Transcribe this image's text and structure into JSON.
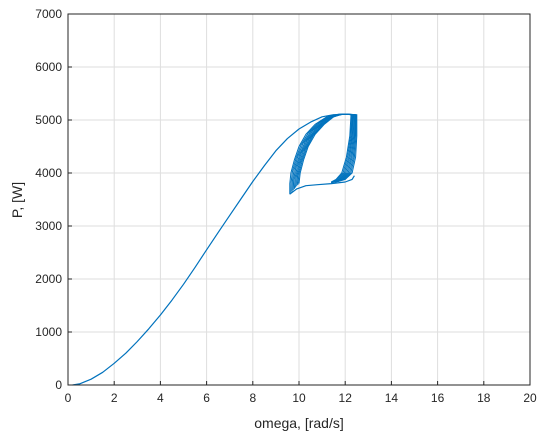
{
  "chart_data": {
    "type": "line",
    "title": "",
    "xlabel": "omega, [rad/s]",
    "ylabel": "P, [W]",
    "xlim": [
      0,
      20
    ],
    "ylim": [
      0,
      7000
    ],
    "xticks": [
      0,
      2,
      4,
      6,
      8,
      10,
      12,
      14,
      16,
      18,
      20
    ],
    "yticks": [
      0,
      1000,
      2000,
      3000,
      4000,
      5000,
      6000,
      7000
    ],
    "xtick_labels": [
      "0",
      "2",
      "4",
      "6",
      "8",
      "10",
      "12",
      "14",
      "16",
      "18",
      "20"
    ],
    "ytick_labels": [
      "0",
      "1000",
      "2000",
      "3000",
      "4000",
      "5000",
      "6000",
      "7000"
    ],
    "grid": true,
    "series": [
      {
        "color": "#0072BD",
        "x": [
          0.2,
          0.5,
          1.0,
          1.5,
          2.0,
          2.5,
          3.0,
          3.5,
          4.0,
          4.5,
          5.0,
          5.5,
          6.0,
          6.5,
          7.0,
          7.5,
          8.0,
          8.5,
          9.0,
          9.5,
          10.0,
          10.5,
          11.0,
          11.5,
          12.0,
          12.4
        ],
        "y": [
          0,
          20,
          110,
          240,
          410,
          600,
          820,
          1060,
          1320,
          1600,
          1900,
          2220,
          2550,
          2880,
          3200,
          3520,
          3840,
          4140,
          4420,
          4650,
          4830,
          4960,
          5060,
          5100,
          5110,
          5100
        ]
      },
      {
        "color": "#0072BD",
        "x": [
          9.6,
          9.9,
          10.3,
          10.8,
          11.4,
          12.0,
          12.3,
          12.4
        ],
        "y": [
          3600,
          3700,
          3760,
          3780,
          3800,
          3830,
          3880,
          3950
        ]
      }
    ],
    "loop_band": {
      "color": "#0072BD",
      "outer_edge": {
        "x": [
          9.6,
          9.6,
          9.65,
          9.8,
          10.0,
          10.3,
          10.7,
          11.2,
          11.7,
          12.0,
          12.3,
          12.5
        ],
        "y": [
          3600,
          3800,
          4000,
          4250,
          4500,
          4730,
          4920,
          5060,
          5110,
          5110,
          5100,
          5100
        ]
      },
      "inner_edge": {
        "x": [
          10.0,
          10.05,
          10.2,
          10.4,
          10.7,
          11.1,
          11.5,
          11.9,
          12.1
        ],
        "y": [
          3800,
          4000,
          4250,
          4500,
          4730,
          4920,
          5060,
          5110,
          5110
        ]
      },
      "right_edge_outer": {
        "x": [
          12.5,
          12.5,
          12.45,
          12.3,
          12.0,
          11.7,
          11.4
        ],
        "y": [
          5100,
          4700,
          4300,
          4000,
          3880,
          3840,
          3820
        ]
      },
      "right_edge_inner": {
        "x": [
          12.25,
          12.2,
          12.05,
          11.85,
          11.6,
          11.4
        ],
        "y": [
          5100,
          4700,
          4300,
          4000,
          3880,
          3830
        ]
      }
    }
  }
}
